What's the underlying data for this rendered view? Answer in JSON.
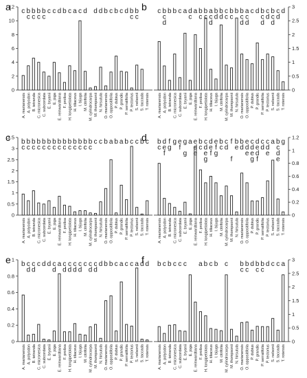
{
  "figure": {
    "categories": [
      "A. marianensis",
      "A. polyodon",
      "B. tetranda",
      "C. micronesica",
      "C. subcordata",
      "E. bryanii",
      "E. joga",
      "E. reinwardtiana",
      "F. prolixa",
      "H. longipetiolata",
      "H. tiliaceus",
      "I. bijuga",
      "M. citrifolia",
      "M. cylindrocarpa",
      "M. thompsonii",
      "N. hirsutula",
      "O. marianensis",
      "O. oppositifolia",
      "P. dubius",
      "P. grandis",
      "P. serratifolia",
      "P. tectorius",
      "S. nelsonii",
      "S. taccada",
      "T. rotensis"
    ]
  },
  "chart_data": [
    {
      "type": "bar",
      "panel": "a",
      "ylim": [
        0,
        12
      ],
      "yticks": [
        0,
        2,
        4,
        6,
        8,
        10,
        12
      ],
      "values": [
        2.1,
        3.5,
        4.6,
        4.0,
        2.6,
        2.0,
        4.0,
        2.5,
        1.1,
        3.5,
        2.8,
        10.0,
        2.7,
        0.3,
        0.5,
        3.3,
        0.6,
        2.6,
        4.9,
        2.7,
        2.6,
        0.3,
        3.6,
        3.0,
        0.0
      ],
      "letters": [
        "c",
        "b",
        "b",
        "b",
        "b",
        "c",
        "c",
        "d",
        "b",
        "c",
        "a",
        "c",
        "d",
        "",
        "d",
        "d",
        "b",
        "c",
        "b",
        "c",
        "d",
        "b",
        "b",
        "",
        ""
      ],
      "letters_row2": [
        "",
        "c",
        "c",
        "c",
        "c",
        "",
        "",
        "",
        "",
        "",
        "",
        "",
        "",
        "",
        "",
        "",
        "",
        "",
        "",
        "",
        "",
        "c",
        "c",
        "",
        ""
      ]
    },
    {
      "type": "bar",
      "panel": "b",
      "ylim": [
        0,
        3
      ],
      "yticks": [
        0,
        0.5,
        1,
        1.5,
        2,
        2.5,
        3
      ],
      "values": [
        1.75,
        0.87,
        0.35,
        1.3,
        0.45,
        2.05,
        0.35,
        2.0,
        1.5,
        2.6,
        0.75,
        0.4,
        2.35,
        0.9,
        0.8,
        2.6,
        1.3,
        1.1,
        0.95,
        1.7,
        1.1,
        1.3,
        1.2,
        0.7,
        0.3
      ],
      "letters": [
        "c",
        "b",
        "b",
        "b",
        "c",
        "a",
        "d",
        "a",
        "b",
        "b",
        "a",
        "b",
        "b",
        "c",
        "b",
        "b",
        "b",
        "a",
        "c",
        "d",
        "b",
        "c",
        "b",
        "c",
        "d"
      ],
      "letters_row2": [
        "",
        "c",
        "",
        "",
        "",
        "",
        "c",
        "",
        "c",
        "c",
        "c",
        "d",
        "d",
        "c",
        "c",
        "",
        "c",
        "c",
        "",
        "",
        "c",
        "d",
        "c",
        "d",
        ""
      ],
      "letters_row3": [
        "",
        "d",
        "",
        "",
        "",
        "",
        "",
        "",
        "",
        "",
        "d",
        "",
        "",
        "",
        "",
        "",
        "d",
        "d",
        "",
        "",
        "d",
        "",
        "d",
        "",
        ""
      ]
    },
    {
      "type": "bar",
      "panel": "c",
      "ylim": [
        0,
        3.5
      ],
      "yticks": [
        0,
        0.5,
        1,
        1.5,
        2,
        2.5,
        3,
        3.5
      ],
      "values": [
        0.95,
        0.65,
        1.1,
        0.55,
        0.5,
        0.65,
        0.35,
        0.85,
        0.45,
        0.4,
        0.15,
        0.2,
        0.2,
        0.1,
        0.08,
        0.6,
        1.2,
        2.5,
        0.1,
        1.35,
        0.7,
        3.1,
        0.35,
        0.05,
        0.65
      ],
      "letters": [
        "b",
        "b",
        "b",
        "b",
        "b",
        "b",
        "b",
        "b",
        "b",
        "b",
        "b",
        "b",
        "b",
        "b",
        "c",
        "c",
        "b",
        "a",
        "b",
        "a",
        "b",
        "c",
        "c",
        "b",
        "c"
      ],
      "letters_row2": [
        "c",
        "c",
        "c",
        "c",
        "c",
        "c",
        "c",
        "c",
        "c",
        "c",
        "c",
        "c",
        "c",
        "c",
        "",
        "",
        "",
        "",
        "",
        "",
        "",
        "",
        "",
        "",
        ""
      ]
    },
    {
      "type": "bar",
      "panel": "d",
      "ylim": [
        0,
        1.2
      ],
      "yticks": [
        0,
        0.2,
        0.4,
        0.6,
        0.8,
        1,
        1.2
      ],
      "values": [
        0.8,
        0.26,
        0.18,
        0.12,
        0.06,
        0.2,
        0.02,
        1.05,
        0.7,
        0.5,
        0.6,
        0.5,
        0.3,
        0.45,
        0.3,
        0.05,
        0.65,
        0.5,
        0.22,
        0.22,
        0.27,
        0.53,
        0.85,
        0.25,
        0.05
      ],
      "letters": [
        "b",
        "d",
        "f",
        "g",
        "e",
        "g",
        "a",
        "e",
        "b",
        "c",
        "d",
        "e",
        "b",
        "c",
        "f",
        "b",
        "b",
        "e",
        "c",
        "d",
        "c",
        "c",
        "a",
        "b",
        "g"
      ],
      "letters_row2": [
        "c",
        "e",
        "g",
        "",
        "f",
        "",
        "",
        "d",
        "c",
        "d",
        "e",
        "f",
        "c",
        "d",
        "",
        "e",
        "d",
        "d",
        "d",
        "e",
        "d",
        "d",
        "",
        "c",
        ""
      ],
      "letters_row3": [
        "",
        "f",
        "",
        "",
        "",
        "g",
        "",
        "e",
        "",
        "e",
        "f",
        "g",
        "",
        "",
        "",
        "",
        "",
        "e",
        "e",
        "d",
        "",
        "e",
        "",
        "d",
        ""
      ],
      "letters_row4": [
        "",
        "",
        "",
        "",
        "",
        "",
        "",
        "",
        "",
        "g",
        "",
        "",
        "",
        "",
        "f",
        "",
        "",
        "",
        "g",
        "f",
        "",
        "",
        "",
        "e",
        ""
      ]
    },
    {
      "type": "bar",
      "panel": "e",
      "ylim": [
        0,
        1
      ],
      "yticks": [
        0,
        0.2,
        0.4,
        0.6,
        0.8,
        1
      ],
      "values": [
        0.57,
        0.08,
        0.09,
        0.21,
        0.03,
        0.02,
        0.13,
        0.83,
        0.12,
        0.12,
        0.22,
        0.09,
        0.08,
        0.18,
        0.21,
        0.04,
        0.5,
        0.56,
        0.13,
        0.73,
        0.21,
        0.19,
        0.9,
        0.03,
        0.02
      ],
      "letters": [
        "b",
        "c",
        "c",
        "c",
        "d",
        "d",
        "c",
        "a",
        "c",
        "c",
        "c",
        "c",
        "c",
        "c",
        "c",
        "d",
        "b",
        "b",
        "c",
        "a",
        "c",
        "c",
        "a",
        "d",
        "d"
      ],
      "letters_row2": [
        "",
        "d",
        "d",
        "",
        "",
        "",
        "d",
        "",
        "d",
        "d",
        "d",
        "d",
        "",
        "d",
        "d",
        "",
        "",
        "",
        "",
        "",
        "",
        "",
        "",
        "",
        ""
      ]
    },
    {
      "type": "bar",
      "panel": "f",
      "ylim": [
        0,
        3
      ],
      "yticks": [
        0,
        0.5,
        1,
        1.5,
        2,
        2.5,
        3
      ],
      "values": [
        0.55,
        0.3,
        0.6,
        0.62,
        0.4,
        0.38,
        2.45,
        1.45,
        1.1,
        0.95,
        0.48,
        0.45,
        0.4,
        2.45,
        0.45,
        0.2,
        0.7,
        0.72,
        0.42,
        0.56,
        0.55,
        0.55,
        0.85,
        0.42,
        2.45
      ],
      "letters": [
        "b",
        "c",
        "b",
        "c",
        "c",
        "c",
        "",
        "",
        "a",
        "b",
        "c",
        "b",
        "",
        "c",
        "",
        "",
        "b",
        "b",
        "d",
        "b",
        "b",
        "d",
        "c",
        "c",
        "a"
      ],
      "letters_row2": [
        "",
        "",
        "",
        "",
        "",
        "",
        "",
        "",
        "",
        "",
        "",
        "",
        "",
        "",
        "",
        "",
        "c",
        "c",
        "",
        "c",
        "c",
        "",
        "",
        "",
        ""
      ]
    }
  ]
}
